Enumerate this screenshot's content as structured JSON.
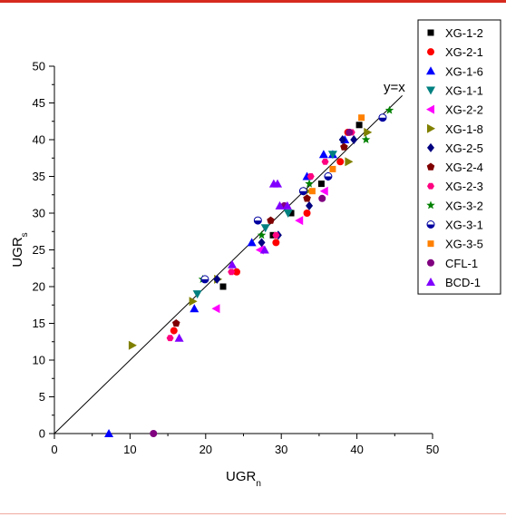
{
  "chart_data": {
    "type": "scatter",
    "xlabel": "UGR",
    "xlabel_sub": "n",
    "ylabel": "UGR",
    "ylabel_sub": "s",
    "xlim": [
      0,
      50
    ],
    "ylim": [
      0,
      50
    ],
    "x_ticks": [
      "0",
      "10",
      "20",
      "30",
      "40",
      "50"
    ],
    "y_ticks": [
      "0",
      "5",
      "10",
      "15",
      "20",
      "25",
      "30",
      "35",
      "40",
      "45",
      "50"
    ],
    "grid": false,
    "legend_position": "top-right",
    "annotation": "y=x",
    "reference_line": {
      "x": [
        0,
        46
      ],
      "y": [
        0,
        46
      ]
    },
    "series": [
      {
        "name": "XG-1-2",
        "marker": "square",
        "color": "#000000",
        "points": [
          [
            22.3,
            20
          ],
          [
            28.9,
            27
          ],
          [
            31.3,
            30
          ],
          [
            35.3,
            34
          ],
          [
            40.3,
            42
          ]
        ]
      },
      {
        "name": "XG-2-1",
        "marker": "circle",
        "color": "#ff0000",
        "points": [
          [
            15.8,
            14
          ],
          [
            24.1,
            22
          ],
          [
            29.3,
            26
          ],
          [
            33.4,
            30
          ],
          [
            37.8,
            37
          ],
          [
            38.8,
            41
          ]
        ]
      },
      {
        "name": "XG-1-6",
        "marker": "triangle-up",
        "color": "#0000ff",
        "points": [
          [
            7.2,
            0
          ],
          [
            18.5,
            17
          ],
          [
            26.1,
            26
          ],
          [
            33.4,
            35
          ],
          [
            35.6,
            38
          ],
          [
            36.8,
            38
          ],
          [
            38.4,
            40
          ]
        ]
      },
      {
        "name": "XG-1-1",
        "marker": "triangle-down",
        "color": "#008080",
        "points": [
          [
            18.9,
            19
          ],
          [
            27.9,
            28
          ],
          [
            30.9,
            30
          ],
          [
            36.8,
            38
          ]
        ]
      },
      {
        "name": "XG-2-2",
        "marker": "triangle-left",
        "color": "#ff00ff",
        "points": [
          [
            21.4,
            17
          ],
          [
            27.2,
            25
          ],
          [
            32.4,
            29
          ],
          [
            35.7,
            33
          ]
        ]
      },
      {
        "name": "XG-1-8",
        "marker": "triangle-right",
        "color": "#808000",
        "points": [
          [
            10.3,
            12
          ],
          [
            18.3,
            18
          ],
          [
            21.6,
            21
          ],
          [
            33.4,
            33
          ],
          [
            38.9,
            37
          ],
          [
            41.4,
            41
          ]
        ]
      },
      {
        "name": "XG-2-5",
        "marker": "diamond",
        "color": "#000080",
        "points": [
          [
            21.5,
            21
          ],
          [
            27.4,
            26
          ],
          [
            29.6,
            27
          ],
          [
            33.7,
            31
          ],
          [
            36.2,
            35
          ],
          [
            38.1,
            40
          ],
          [
            39.6,
            40
          ]
        ]
      },
      {
        "name": "XG-2-4",
        "marker": "pentagon",
        "color": "#800000",
        "points": [
          [
            16.1,
            15
          ],
          [
            28.6,
            29
          ],
          [
            33.4,
            32
          ],
          [
            38.3,
            39
          ]
        ]
      },
      {
        "name": "XG-2-3",
        "marker": "hexagon",
        "color": "#ff0080",
        "points": [
          [
            15.3,
            13
          ],
          [
            23.4,
            22
          ],
          [
            29.3,
            27
          ],
          [
            33.9,
            35
          ],
          [
            35.8,
            37
          ],
          [
            39.3,
            41
          ]
        ]
      },
      {
        "name": "XG-3-2",
        "marker": "star",
        "color": "#008000",
        "points": [
          [
            19.6,
            21
          ],
          [
            27.4,
            27
          ],
          [
            33.7,
            34
          ],
          [
            41.2,
            40
          ],
          [
            44.3,
            44
          ]
        ]
      },
      {
        "name": "XG-3-1",
        "marker": "half-circle",
        "color": "#0000a0",
        "points": [
          [
            19.9,
            21
          ],
          [
            26.9,
            29
          ],
          [
            32.9,
            33
          ],
          [
            36.2,
            35
          ],
          [
            43.4,
            43
          ]
        ]
      },
      {
        "name": "XG-3-5",
        "marker": "square",
        "color": "#ff8000",
        "points": [
          [
            34.1,
            33
          ],
          [
            36.8,
            36
          ],
          [
            40.6,
            43
          ]
        ]
      },
      {
        "name": "CFL-1",
        "marker": "circle",
        "color": "#800080",
        "points": [
          [
            13.1,
            0
          ],
          [
            30.4,
            31
          ],
          [
            35.4,
            32
          ],
          [
            39.0,
            41
          ]
        ]
      },
      {
        "name": "BCD-1",
        "marker": "triangle-up",
        "color": "#8000ff",
        "points": [
          [
            16.5,
            13
          ],
          [
            23.5,
            23
          ],
          [
            27.8,
            25
          ],
          [
            29.0,
            34
          ],
          [
            29.5,
            34
          ],
          [
            29.8,
            31
          ],
          [
            30.8,
            31
          ]
        ]
      }
    ]
  }
}
